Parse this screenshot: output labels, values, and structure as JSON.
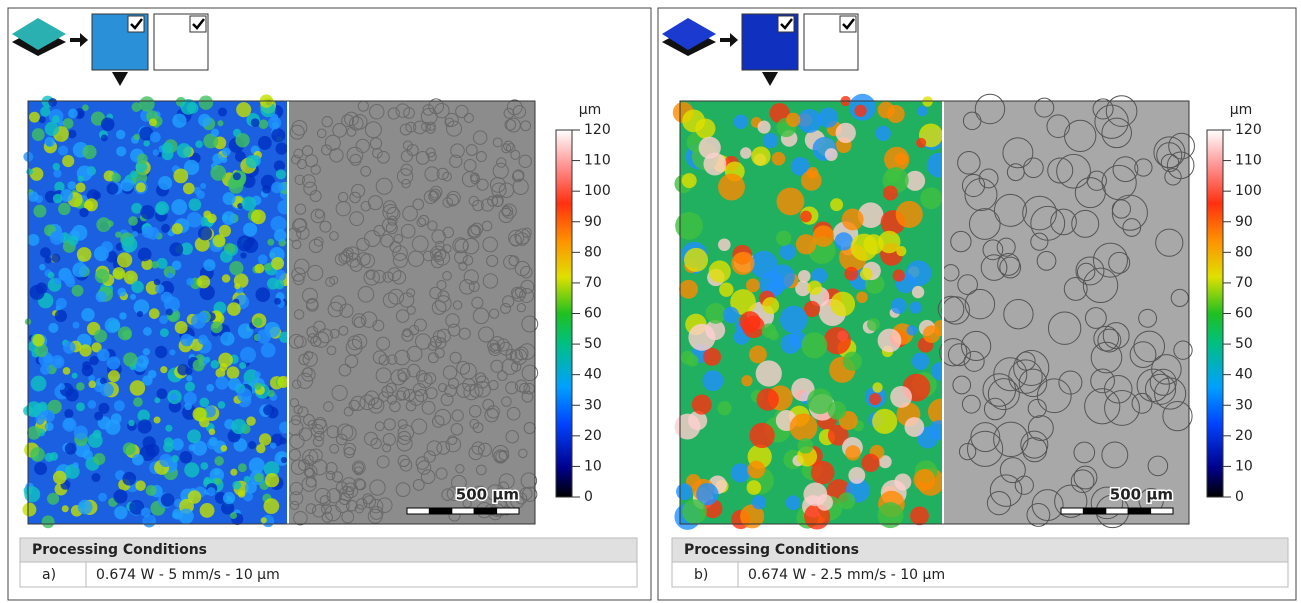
{
  "panels": [
    {
      "colorbar": {
        "unit": "µm",
        "ticks": [
          0,
          10,
          20,
          30,
          40,
          50,
          60,
          70,
          80,
          90,
          100,
          110,
          120
        ]
      },
      "scale_bar": "500 µm",
      "table": {
        "header": "Processing Conditions",
        "rows": [
          [
            "a)",
            "0.674 W - 5 mm/s - 10 µm"
          ]
        ]
      }
    },
    {
      "colorbar": {
        "unit": "µm",
        "ticks": [
          0,
          10,
          20,
          30,
          40,
          50,
          60,
          70,
          80,
          90,
          100,
          110,
          120
        ]
      },
      "scale_bar": "500 µm",
      "table": {
        "header": "Processing Conditions",
        "rows": [
          [
            "b)",
            "0.674 W - 2.5 mm/s - 10 µm"
          ]
        ]
      }
    }
  ]
}
